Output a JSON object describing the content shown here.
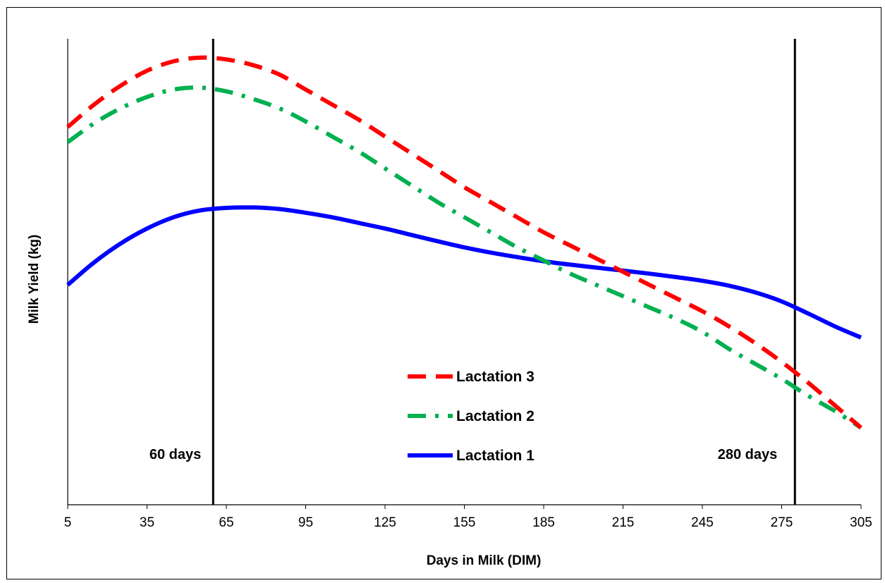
{
  "chart_data": {
    "type": "line",
    "title": "",
    "xlabel": "Days in Milk (DIM)",
    "ylabel": "Milk Yield (kg)",
    "xlim": [
      5,
      305
    ],
    "xticks": [
      5,
      35,
      65,
      95,
      125,
      155,
      185,
      215,
      245,
      275,
      305
    ],
    "y_ticks_shown": false,
    "grid": false,
    "legend_position": "center-bottom",
    "vertical_lines": [
      {
        "x": 60,
        "label": "60 days"
      },
      {
        "x": 280,
        "label": "280 days"
      }
    ],
    "series": [
      {
        "name": "Lactation 3",
        "style": "dashed",
        "color": "#ff0000",
        "x": [
          5,
          15,
          25,
          35,
          45,
          55,
          65,
          75,
          85,
          95,
          105,
          115,
          125,
          135,
          145,
          155,
          165,
          175,
          185,
          195,
          205,
          215,
          225,
          235,
          245,
          255,
          265,
          275,
          285,
          295,
          305
        ],
        "y": [
          0.79,
          0.85,
          0.9,
          0.94,
          0.965,
          0.975,
          0.97,
          0.955,
          0.93,
          0.89,
          0.85,
          0.81,
          0.765,
          0.72,
          0.675,
          0.63,
          0.59,
          0.55,
          0.51,
          0.475,
          0.44,
          0.405,
          0.37,
          0.335,
          0.3,
          0.26,
          0.215,
          0.165,
          0.11,
          0.05,
          -0.01
        ]
      },
      {
        "name": "Lactation 2",
        "style": "dash-dot",
        "color": "#00b050",
        "x": [
          5,
          15,
          25,
          35,
          45,
          55,
          65,
          75,
          85,
          95,
          105,
          115,
          125,
          135,
          145,
          155,
          165,
          175,
          185,
          195,
          205,
          215,
          225,
          235,
          245,
          255,
          265,
          275,
          285,
          295,
          305
        ],
        "y": [
          0.75,
          0.8,
          0.84,
          0.87,
          0.89,
          0.895,
          0.885,
          0.865,
          0.84,
          0.805,
          0.765,
          0.725,
          0.68,
          0.635,
          0.59,
          0.55,
          0.51,
          0.47,
          0.435,
          0.4,
          0.37,
          0.34,
          0.31,
          0.28,
          0.245,
          0.2,
          0.16,
          0.12,
          0.075,
          0.035,
          -0.01
        ]
      },
      {
        "name": "Lactation 1",
        "style": "solid",
        "color": "#0000ff",
        "x": [
          5,
          15,
          25,
          35,
          45,
          55,
          65,
          75,
          85,
          95,
          105,
          115,
          125,
          135,
          145,
          155,
          165,
          175,
          185,
          195,
          205,
          215,
          225,
          235,
          245,
          255,
          265,
          275,
          285,
          295,
          305
        ],
        "y": [
          0.37,
          0.43,
          0.48,
          0.52,
          0.55,
          0.568,
          0.575,
          0.576,
          0.572,
          0.562,
          0.55,
          0.535,
          0.52,
          0.503,
          0.486,
          0.47,
          0.456,
          0.444,
          0.433,
          0.424,
          0.416,
          0.408,
          0.4,
          0.391,
          0.381,
          0.368,
          0.35,
          0.326,
          0.294,
          0.26,
          0.23
        ]
      }
    ]
  }
}
